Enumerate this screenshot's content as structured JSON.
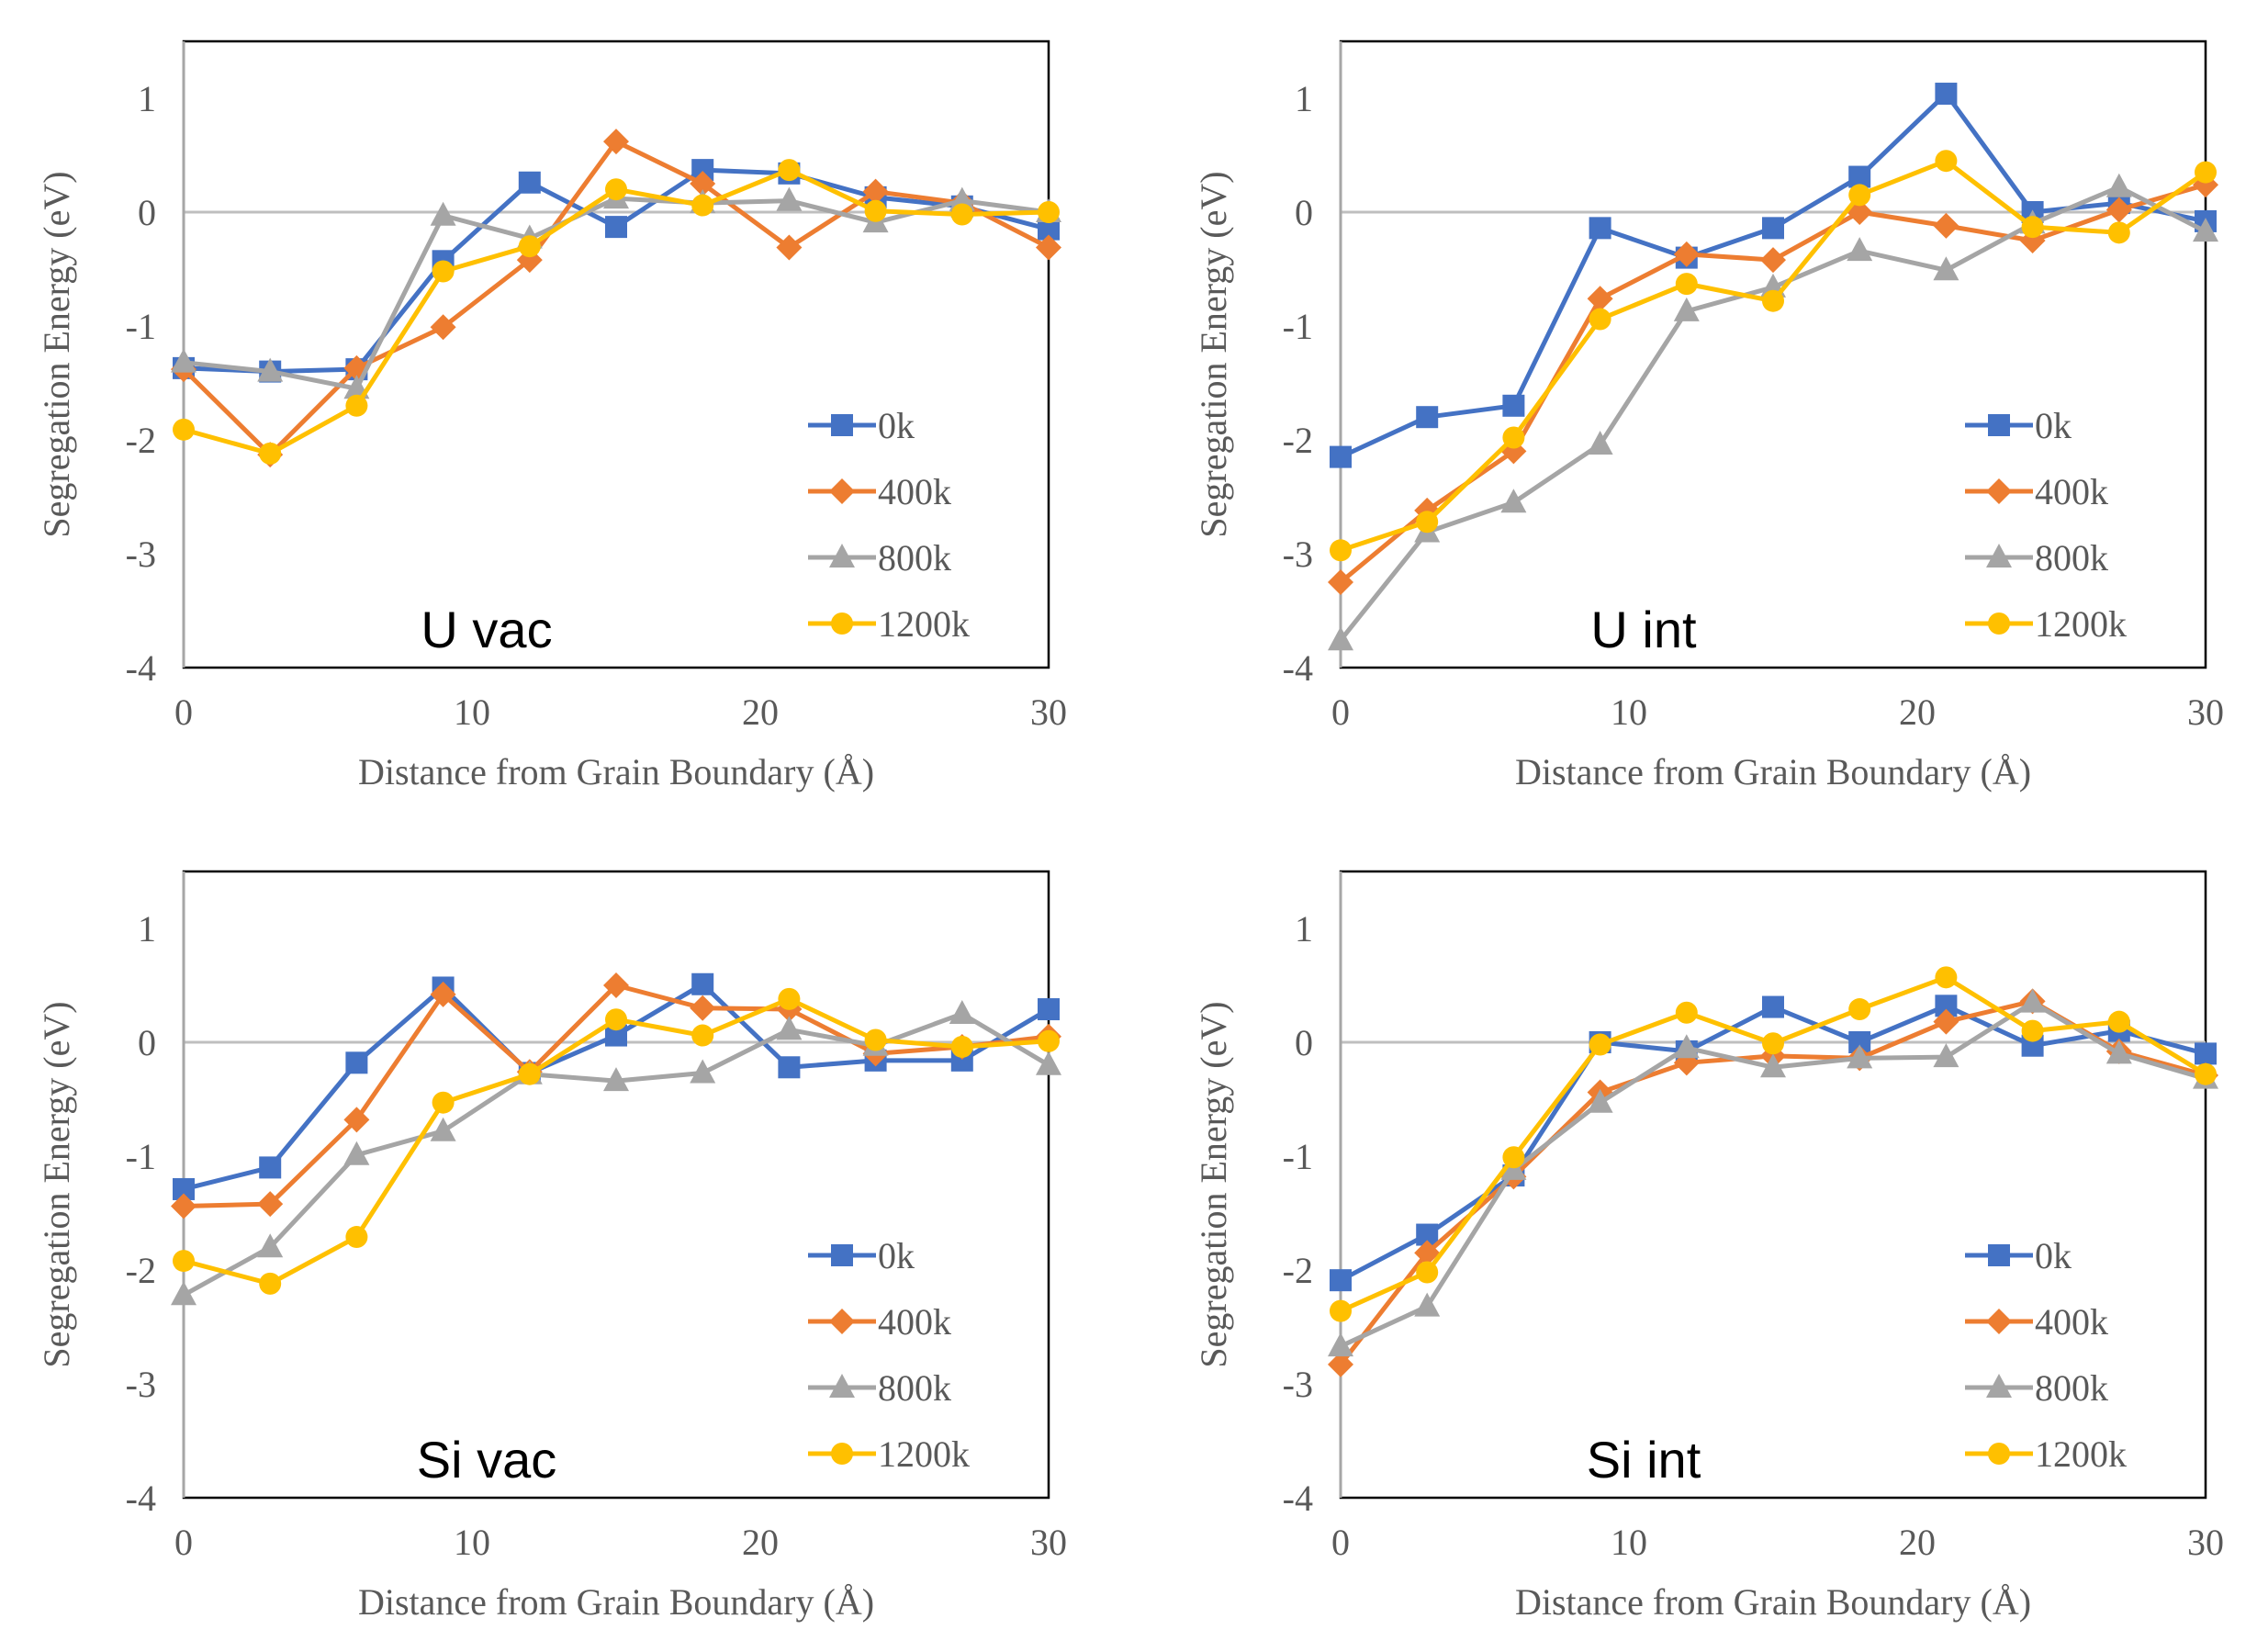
{
  "chart_data": [
    {
      "type": "line",
      "title": "U vac",
      "xlabel": "Distance from Grain Boundary (Å)",
      "ylabel": "Segregation Energy (eV)",
      "xlim": [
        0,
        30
      ],
      "ylim": [
        -4,
        1.5
      ],
      "xticks": [
        "0",
        "10",
        "20",
        "30"
      ],
      "yticks": [
        "-4",
        "-3",
        "-2",
        "-1",
        "0",
        "1"
      ],
      "grid": false,
      "legend_position": "bottom-right",
      "x": [
        0,
        3,
        6,
        9,
        12,
        15,
        18,
        21,
        24,
        27,
        30
      ],
      "series": [
        {
          "name": "0k",
          "marker": "square",
          "color": "#4472C4",
          "values": [
            -1.37,
            -1.4,
            -1.38,
            -0.43,
            0.26,
            -0.13,
            0.37,
            0.34,
            0.13,
            0.05,
            -0.15
          ]
        },
        {
          "name": "400k",
          "marker": "diamond",
          "color": "#ED7D31",
          "values": [
            -1.38,
            -2.13,
            -1.37,
            -1.01,
            -0.42,
            0.62,
            0.25,
            -0.31,
            0.18,
            0.08,
            -0.31
          ]
        },
        {
          "name": "800k",
          "marker": "triangle",
          "color": "#A5A5A5",
          "values": [
            -1.32,
            -1.4,
            -1.55,
            -0.03,
            -0.23,
            0.12,
            0.08,
            0.1,
            -0.09,
            0.1,
            0.0
          ]
        },
        {
          "name": "1200k",
          "marker": "circle",
          "color": "#FFC000",
          "values": [
            -1.91,
            -2.12,
            -1.7,
            -0.52,
            -0.3,
            0.2,
            0.06,
            0.37,
            0.01,
            -0.02,
            0.0
          ]
        }
      ]
    },
    {
      "type": "line",
      "title": "U int",
      "xlabel": "Distance from Grain Boundary (Å)",
      "ylabel": "Segregation Energy (eV)",
      "xlim": [
        0,
        30
      ],
      "ylim": [
        -4,
        1.5
      ],
      "xticks": [
        "0",
        "10",
        "20",
        "30"
      ],
      "yticks": [
        "-4",
        "-3",
        "-2",
        "-1",
        "0",
        "1"
      ],
      "grid": false,
      "legend_position": "bottom-right",
      "x": [
        0,
        3,
        6,
        9,
        12,
        15,
        18,
        21,
        24,
        27,
        30
      ],
      "series": [
        {
          "name": "0k",
          "marker": "square",
          "color": "#4472C4",
          "values": [
            -2.15,
            -1.8,
            -1.7,
            -0.14,
            -0.4,
            -0.14,
            0.31,
            1.04,
            0.0,
            0.08,
            -0.08
          ]
        },
        {
          "name": "400k",
          "marker": "diamond",
          "color": "#ED7D31",
          "values": [
            -3.25,
            -2.62,
            -2.1,
            -0.76,
            -0.37,
            -0.42,
            0.0,
            -0.12,
            -0.25,
            0.02,
            0.24
          ]
        },
        {
          "name": "800k",
          "marker": "triangle",
          "color": "#A5A5A5",
          "values": [
            -3.76,
            -2.81,
            -2.55,
            -2.04,
            -0.87,
            -0.66,
            -0.34,
            -0.51,
            -0.1,
            0.22,
            -0.17
          ]
        },
        {
          "name": "1200k",
          "marker": "circle",
          "color": "#FFC000",
          "values": [
            -2.97,
            -2.72,
            -1.98,
            -0.94,
            -0.63,
            -0.78,
            0.15,
            0.45,
            -0.13,
            -0.18,
            0.35
          ]
        }
      ]
    },
    {
      "type": "line",
      "title": "Si vac",
      "xlabel": "Distance from Grain Boundary (Å)",
      "ylabel": "Segregation Energy (eV)",
      "xlim": [
        0,
        30
      ],
      "ylim": [
        -4,
        1.5
      ],
      "xticks": [
        "0",
        "10",
        "20",
        "30"
      ],
      "yticks": [
        "-4",
        "-3",
        "-2",
        "-1",
        "0",
        "1"
      ],
      "grid": false,
      "legend_position": "bottom-right",
      "x": [
        0,
        3,
        6,
        9,
        12,
        15,
        18,
        21,
        24,
        27,
        30
      ],
      "series": [
        {
          "name": "0k",
          "marker": "square",
          "color": "#4472C4",
          "values": [
            -1.29,
            -1.1,
            -0.18,
            0.48,
            -0.27,
            0.06,
            0.51,
            -0.22,
            -0.16,
            -0.16,
            0.29
          ]
        },
        {
          "name": "400k",
          "marker": "diamond",
          "color": "#ED7D31",
          "values": [
            -1.44,
            -1.42,
            -0.68,
            0.42,
            -0.26,
            0.5,
            0.3,
            0.29,
            -0.1,
            -0.04,
            0.05
          ]
        },
        {
          "name": "800k",
          "marker": "triangle",
          "color": "#A5A5A5",
          "values": [
            -2.22,
            -1.8,
            -0.99,
            -0.78,
            -0.28,
            -0.34,
            -0.27,
            0.11,
            -0.03,
            0.25,
            -0.2
          ]
        },
        {
          "name": "1200k",
          "marker": "circle",
          "color": "#FFC000",
          "values": [
            -1.92,
            -2.12,
            -1.71,
            -0.53,
            -0.28,
            0.2,
            0.06,
            0.38,
            0.02,
            -0.04,
            0.01
          ]
        }
      ]
    },
    {
      "type": "line",
      "title": "Si int",
      "xlabel": "Distance from Grain Boundary (Å)",
      "ylabel": "Segregation Energy (eV)",
      "xlim": [
        0,
        30
      ],
      "ylim": [
        -4,
        1.5
      ],
      "xticks": [
        "0",
        "10",
        "20",
        "30"
      ],
      "yticks": [
        "-4",
        "-3",
        "-2",
        "-1",
        "0",
        "1"
      ],
      "grid": false,
      "legend_position": "bottom-right",
      "x": [
        0,
        3,
        6,
        9,
        12,
        15,
        18,
        21,
        24,
        27,
        30
      ],
      "series": [
        {
          "name": "0k",
          "marker": "square",
          "color": "#4472C4",
          "values": [
            -2.09,
            -1.69,
            -1.17,
            0.0,
            -0.08,
            0.31,
            0.0,
            0.32,
            -0.03,
            0.1,
            -0.1
          ]
        },
        {
          "name": "400k",
          "marker": "diamond",
          "color": "#ED7D31",
          "values": [
            -2.83,
            -1.85,
            -1.18,
            -0.44,
            -0.18,
            -0.12,
            -0.14,
            0.18,
            0.36,
            -0.08,
            -0.29
          ]
        },
        {
          "name": "800k",
          "marker": "triangle",
          "color": "#A5A5A5",
          "values": [
            -2.67,
            -2.32,
            -1.12,
            -0.53,
            -0.05,
            -0.22,
            -0.14,
            -0.13,
            0.35,
            -0.1,
            -0.32
          ]
        },
        {
          "name": "1200k",
          "marker": "circle",
          "color": "#FFC000",
          "values": [
            -2.36,
            -2.02,
            -1.01,
            -0.02,
            0.26,
            -0.01,
            0.29,
            0.57,
            0.1,
            0.18,
            -0.28
          ]
        }
      ]
    }
  ]
}
